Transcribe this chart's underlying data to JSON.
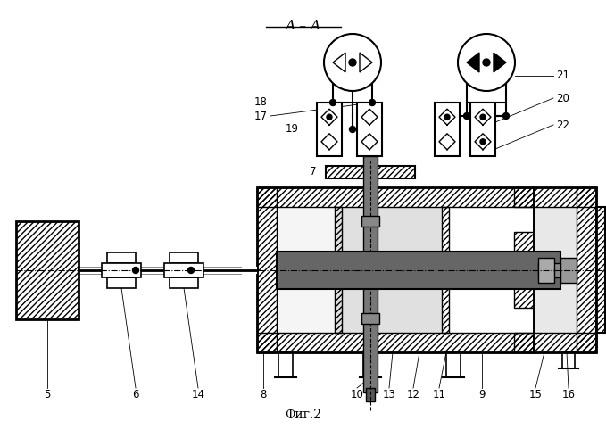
{
  "title": "А – А",
  "subtitle": "Фиг.2",
  "bg_color": "#ffffff",
  "line_color": "#000000",
  "gray_dark": "#888888",
  "gray_mid": "#aaaaaa",
  "gray_light": "#dddddd",
  "dot_gray": "#cccccc",
  "lw": 1.0,
  "lw2": 1.5,
  "lw3": 2.0
}
